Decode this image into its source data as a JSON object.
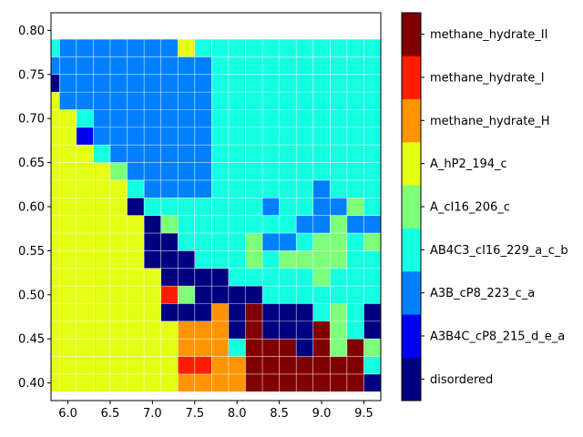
{
  "chart_data": {
    "type": "heatmap",
    "title": "",
    "xlabel": "",
    "ylabel": "",
    "xlim": [
      5.8,
      9.7
    ],
    "ylim": [
      0.38,
      0.82
    ],
    "x_ticks": [
      "6.0",
      "6.5",
      "7.0",
      "7.5",
      "8.0",
      "8.5",
      "9.0",
      "9.5"
    ],
    "y_ticks": [
      "0.40",
      "0.45",
      "0.50",
      "0.55",
      "0.60",
      "0.65",
      "0.70",
      "0.75",
      "0.80"
    ],
    "x_start": 5.8,
    "x_step": 0.2,
    "y_start": 0.4,
    "y_step": 0.02,
    "grid": true,
    "colorbar_position": "right",
    "categories": [
      "disordered",
      "A3B4C_cP8_215_d_e_a",
      "A3B_cP8_223_c_a",
      "AB4C3_cI16_229_a_c_b",
      "A_cI16_206_c",
      "A_hP2_194_c",
      "methane_hydrate_H",
      "methane_hydrate_I",
      "methane_hydrate_II"
    ],
    "colors": [
      "#000080",
      "#0000f1",
      "#0080ff",
      "#15ffe1",
      "#7dff7a",
      "#e4ff13",
      "#ff9400",
      "#ff1d00",
      "#800000"
    ],
    "grid_rows_bottom_to_top": [
      [
        5,
        5,
        5,
        5,
        5,
        5,
        5,
        5,
        6,
        6,
        6,
        6,
        8,
        8,
        8,
        8,
        8,
        8,
        8,
        0,
        3
      ],
      [
        5,
        5,
        5,
        5,
        5,
        5,
        5,
        5,
        7,
        7,
        6,
        6,
        8,
        8,
        8,
        8,
        8,
        8,
        8,
        3,
        3
      ],
      [
        5,
        5,
        5,
        5,
        5,
        5,
        5,
        5,
        6,
        6,
        6,
        3,
        8,
        8,
        8,
        0,
        8,
        4,
        8,
        4,
        2,
        2,
        3
      ],
      [
        5,
        5,
        5,
        5,
        5,
        5,
        5,
        5,
        6,
        6,
        6,
        0,
        8,
        0,
        0,
        0,
        8,
        4,
        3,
        0,
        0,
        0,
        2,
        2
      ],
      [
        5,
        5,
        5,
        5,
        5,
        5,
        5,
        0,
        0,
        0,
        6,
        0,
        8,
        0,
        0,
        0,
        3,
        4,
        3,
        0,
        3,
        3,
        3
      ],
      [
        5,
        5,
        5,
        5,
        5,
        5,
        5,
        7,
        4,
        0,
        0,
        0,
        0,
        3,
        3,
        3,
        3,
        3,
        3,
        3,
        3,
        3
      ],
      [
        5,
        5,
        5,
        5,
        5,
        5,
        5,
        0,
        0,
        0,
        0,
        3,
        3,
        3,
        3,
        3,
        4,
        3,
        3,
        3,
        3,
        3
      ],
      [
        5,
        5,
        5,
        5,
        5,
        5,
        0,
        0,
        0,
        3,
        3,
        3,
        4,
        3,
        4,
        4,
        4,
        4,
        3,
        3,
        3,
        3
      ],
      [
        5,
        5,
        5,
        5,
        5,
        5,
        0,
        0,
        3,
        3,
        3,
        3,
        4,
        2,
        2,
        3,
        4,
        4,
        3,
        4,
        4,
        3
      ],
      [
        5,
        5,
        5,
        5,
        5,
        5,
        0,
        4,
        3,
        3,
        3,
        3,
        3,
        3,
        3,
        2,
        2,
        4,
        2,
        2,
        3,
        3
      ],
      [
        5,
        5,
        5,
        5,
        5,
        0,
        3,
        3,
        3,
        3,
        3,
        3,
        3,
        2,
        3,
        3,
        2,
        2,
        4,
        3,
        3,
        3
      ],
      [
        5,
        5,
        5,
        5,
        5,
        3,
        2,
        2,
        2,
        2,
        3,
        3,
        3,
        3,
        3,
        3,
        2,
        3,
        3,
        3,
        3,
        3
      ],
      [
        5,
        5,
        5,
        5,
        4,
        2,
        2,
        2,
        2,
        2,
        3,
        3,
        3,
        3,
        3,
        3,
        3,
        3,
        3,
        3,
        3,
        3
      ],
      [
        5,
        5,
        5,
        3,
        2,
        2,
        2,
        2,
        2,
        2,
        3,
        3,
        3,
        3,
        3,
        3,
        3,
        3,
        3,
        3,
        3,
        3
      ],
      [
        5,
        5,
        1,
        2,
        2,
        2,
        2,
        2,
        2,
        2,
        3,
        3,
        3,
        3,
        3,
        3,
        3,
        3,
        3,
        3,
        3,
        3
      ],
      [
        5,
        5,
        3,
        2,
        2,
        2,
        2,
        2,
        2,
        2,
        3,
        3,
        3,
        3,
        3,
        3,
        3,
        3,
        3,
        3,
        3,
        3
      ],
      [
        5,
        2,
        2,
        2,
        2,
        2,
        2,
        2,
        2,
        2,
        3,
        3,
        3,
        3,
        3,
        3,
        3,
        3,
        3,
        3,
        3,
        3
      ],
      [
        0,
        2,
        2,
        2,
        2,
        2,
        2,
        2,
        2,
        2,
        3,
        3,
        3,
        3,
        3,
        3,
        3,
        3,
        3,
        3,
        3,
        3
      ],
      [
        2,
        2,
        2,
        2,
        2,
        2,
        2,
        2,
        2,
        2,
        3,
        3,
        3,
        3,
        3,
        3,
        3,
        3,
        3,
        3,
        3,
        3
      ],
      [
        3,
        2,
        2,
        2,
        2,
        2,
        2,
        2,
        5,
        3,
        3,
        3,
        3,
        3,
        3,
        3,
        3,
        3,
        3,
        3,
        3,
        3
      ]
    ]
  }
}
